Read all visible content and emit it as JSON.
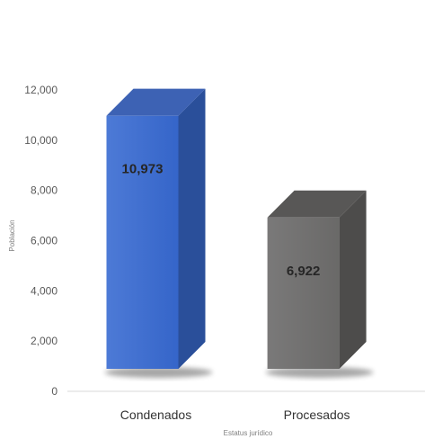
{
  "chart_data": {
    "type": "bar",
    "categories": [
      "Condenados",
      "Procesados"
    ],
    "values": [
      10973,
      6922
    ],
    "data_labels": [
      "10,973",
      "6,922"
    ],
    "xlabel": "Estatus jurídico",
    "ylabel": "Población",
    "ylim": [
      0,
      12000
    ],
    "yticks": [
      0,
      2000,
      4000,
      6000,
      8000,
      10000,
      12000
    ],
    "ytick_labels": [
      "0",
      "2,000",
      "4,000",
      "6,000",
      "8,000",
      "10,000",
      "12,000"
    ],
    "grid": false,
    "legend": "none",
    "style": "3d-column",
    "colors": [
      "#3f6fcd",
      "#6f6e6d"
    ]
  }
}
